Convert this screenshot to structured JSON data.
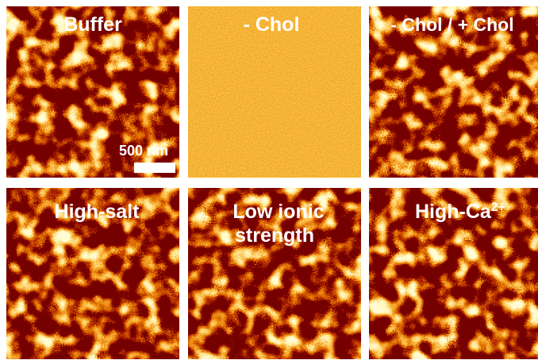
{
  "panels": [
    {
      "lines": [
        "Buffer"
      ]
    },
    {
      "lines": [
        "- Chol"
      ]
    },
    {
      "lines": [
        "- Chol / + Chol"
      ]
    },
    {
      "lines": [
        "High-salt"
      ]
    },
    {
      "lines": [
        "Low ionic",
        "strength"
      ]
    },
    {
      "lines": [
        "High-Ca"
      ],
      "superscript": "2+"
    }
  ],
  "scale_bar": {
    "label": "500 nm"
  }
}
